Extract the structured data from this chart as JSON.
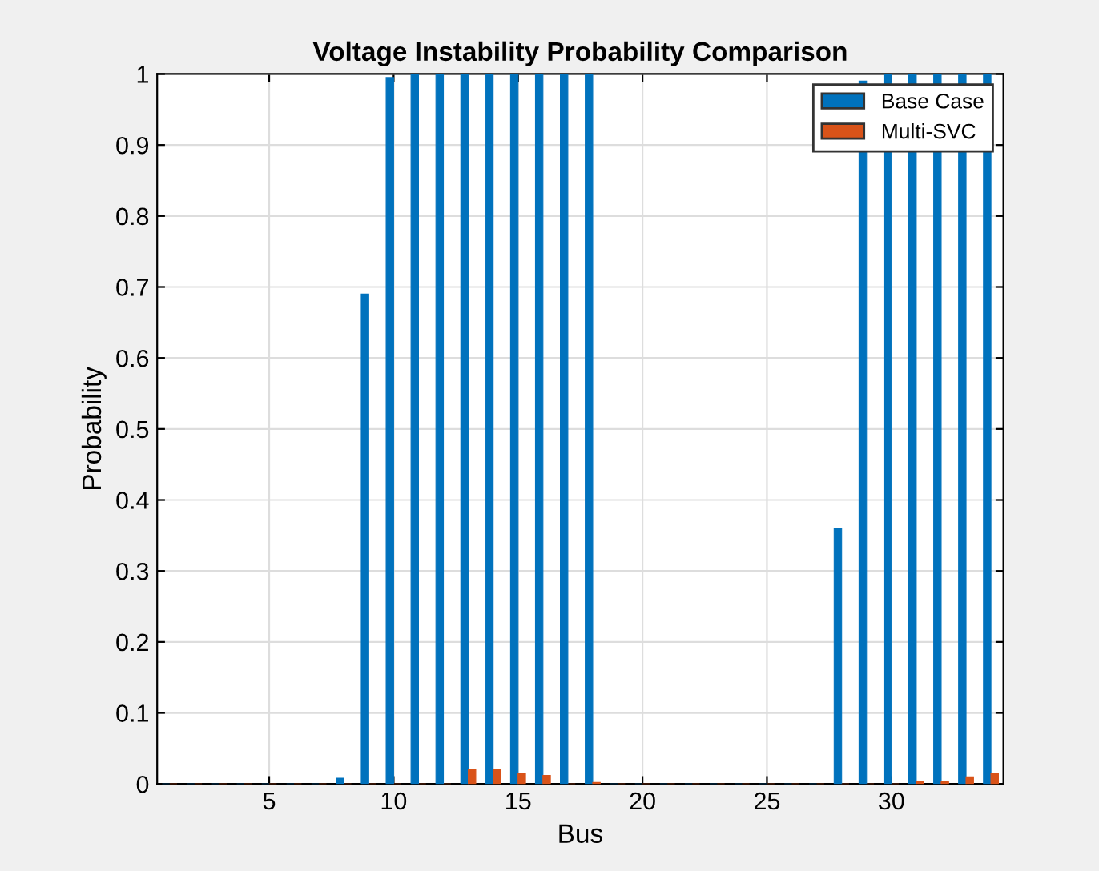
{
  "chart_data": {
    "type": "bar",
    "title": "Voltage Instability Probability Comparison",
    "xlabel": "Bus",
    "ylabel": "Probability",
    "x": [
      1,
      2,
      3,
      4,
      5,
      6,
      7,
      8,
      9,
      10,
      11,
      12,
      13,
      14,
      15,
      16,
      17,
      18,
      19,
      20,
      21,
      22,
      23,
      24,
      25,
      26,
      27,
      28,
      29,
      30,
      31,
      32,
      33,
      34
    ],
    "series": [
      {
        "name": "Base Case",
        "color": "#0072bd",
        "values": [
          0,
          0,
          0,
          0,
          0,
          0,
          0,
          0.008,
          0.69,
          0.995,
          1,
          1,
          1,
          1,
          1,
          1,
          1,
          1,
          0,
          0,
          0,
          0,
          0,
          0,
          0,
          0,
          0,
          0.36,
          0.99,
          1,
          1,
          1,
          1,
          1
        ]
      },
      {
        "name": "Multi-SVC",
        "color": "#d95319",
        "values": [
          0,
          0,
          0,
          0,
          0,
          0,
          0,
          0,
          0,
          0,
          0,
          0,
          0.02,
          0.02,
          0.015,
          0.012,
          0,
          0.002,
          0,
          0,
          0,
          0,
          0,
          0,
          0,
          0,
          0,
          0,
          0,
          0,
          0.003,
          0.003,
          0.01,
          0.015
        ]
      }
    ],
    "xlim": [
      0.5,
      34.5
    ],
    "xticks": [
      5,
      10,
      15,
      20,
      25,
      30
    ],
    "ylim": [
      0,
      1
    ],
    "yticks": [
      0,
      0.1,
      0.2,
      0.3,
      0.4,
      0.5,
      0.6,
      0.7,
      0.8,
      0.9,
      1
    ],
    "grid": true,
    "legend": "top right"
  }
}
